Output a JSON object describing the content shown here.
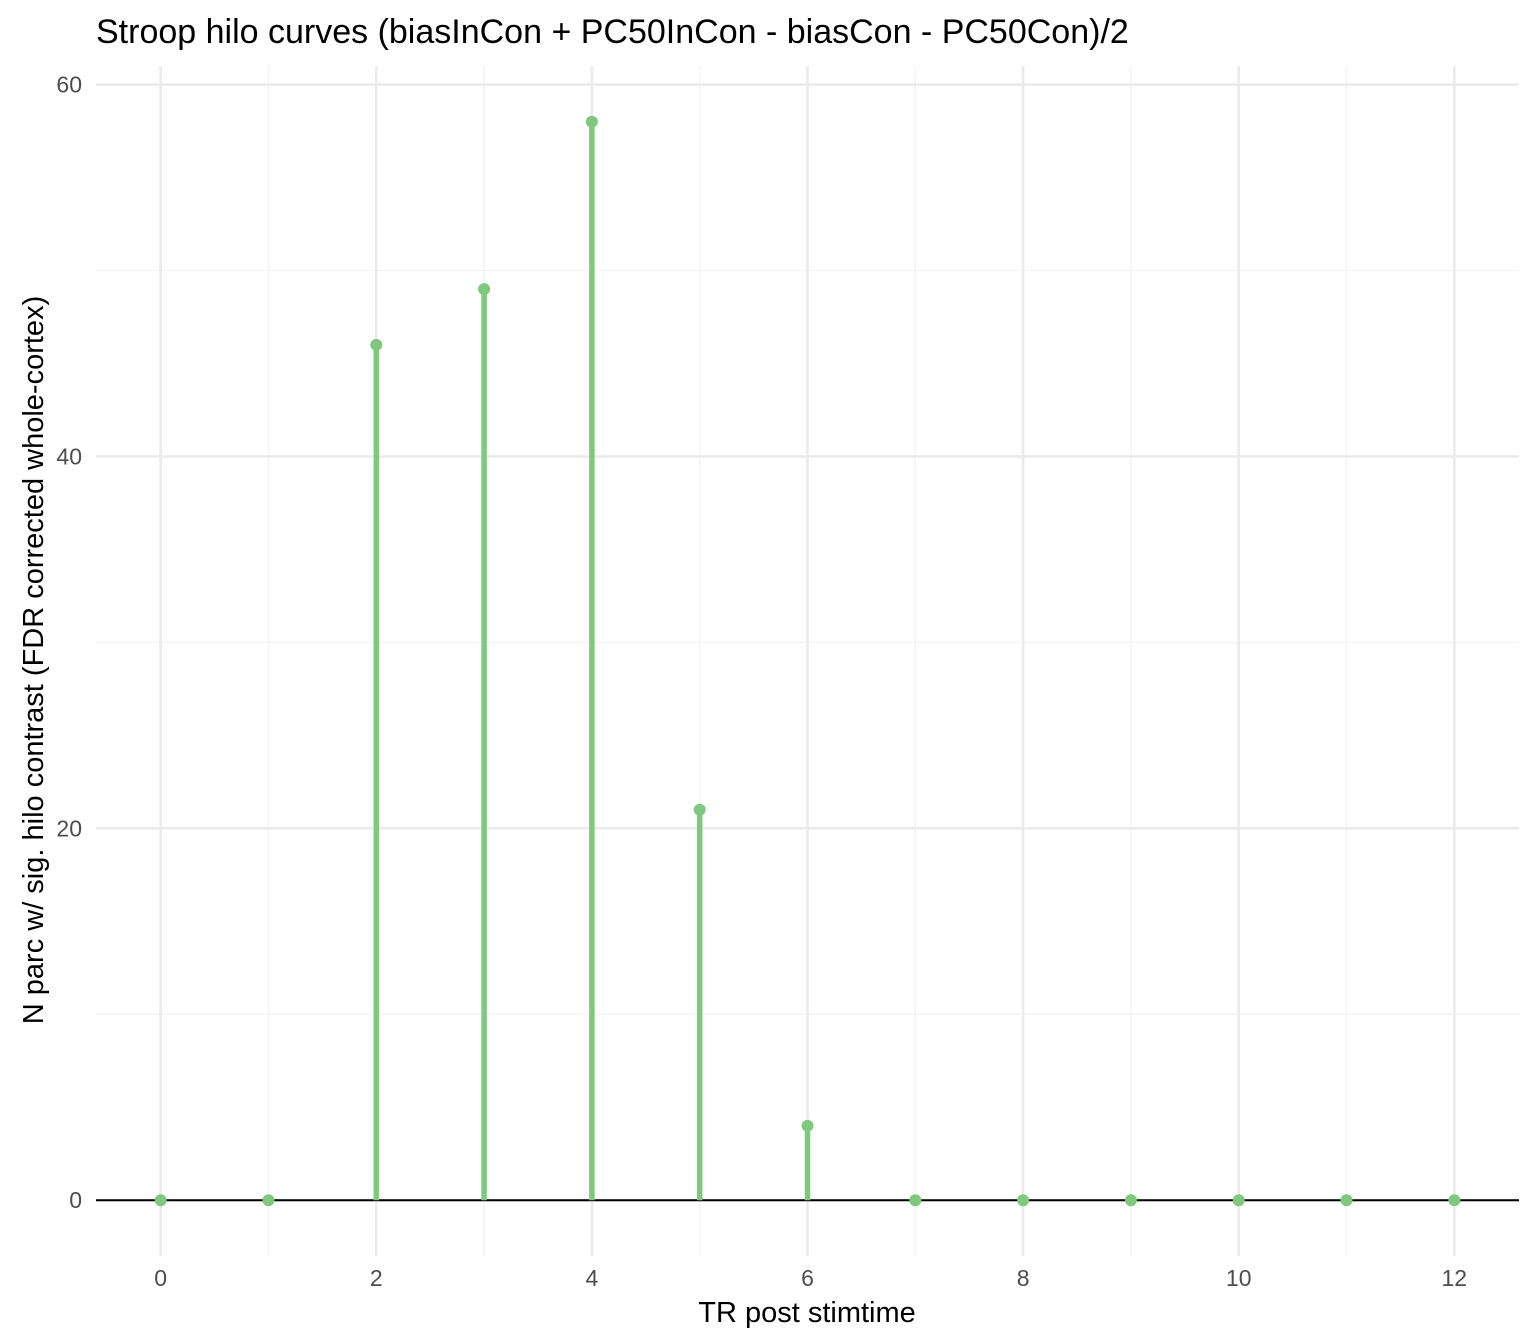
{
  "chart_data": {
    "type": "lollipop",
    "title": "Stroop hilo curves (biasInCon + PC50InCon - biasCon - PC50Con)/2",
    "xlabel": "TR post stimtime",
    "ylabel": "N parc w/ sig. hilo contrast (FDR corrected whole-cortex)",
    "x": [
      0,
      1,
      2,
      3,
      4,
      5,
      6,
      7,
      8,
      9,
      10,
      11,
      12
    ],
    "y": [
      0,
      0,
      46,
      49,
      58,
      21,
      4,
      0,
      0,
      0,
      0,
      0,
      0
    ],
    "xlim": [
      -0.6,
      12.6
    ],
    "ylim": [
      -3,
      61
    ],
    "x_ticks": [
      0,
      2,
      4,
      6,
      8,
      10,
      12
    ],
    "x_tick_labels": [
      "0",
      "2",
      "4",
      "6",
      "8",
      "10",
      "12"
    ],
    "y_ticks": [
      0,
      20,
      40,
      60
    ],
    "y_tick_labels": [
      "0",
      "20",
      "40",
      "60"
    ],
    "reference_line_y": 0,
    "grid": true,
    "color": "#7fc97f",
    "reference_line_color": "#000000"
  }
}
